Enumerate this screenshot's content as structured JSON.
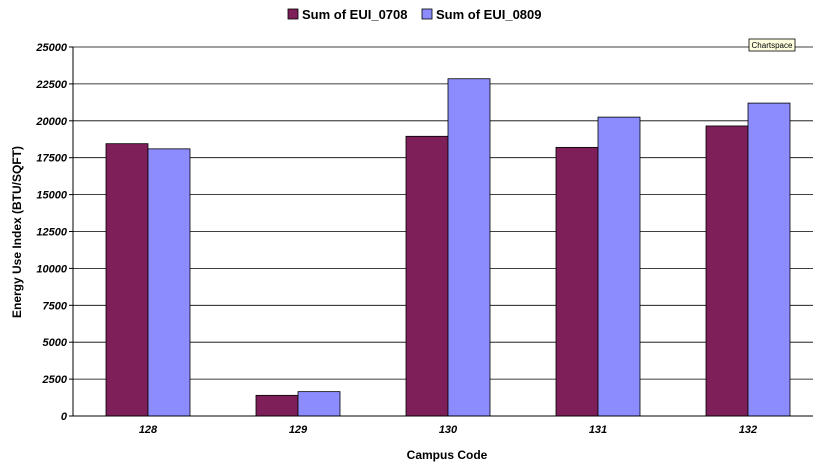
{
  "chart_data": {
    "type": "bar",
    "title": "",
    "xlabel": "Campus Code",
    "ylabel": "Energy Use Index (BTU/SQFT)",
    "categories": [
      "128",
      "129",
      "130",
      "131",
      "132"
    ],
    "series": [
      {
        "name": "Sum of EUI_0708",
        "color": "#7f1f5a",
        "values": [
          18450,
          1400,
          18950,
          18200,
          19650
        ]
      },
      {
        "name": "Sum of EUI_0809",
        "color": "#8c8cff",
        "values": [
          18100,
          1650,
          22850,
          20250,
          21200
        ]
      }
    ],
    "ylim": [
      0,
      25000
    ],
    "yticks": [
      0,
      2500,
      5000,
      7500,
      10000,
      12500,
      15000,
      17500,
      20000,
      22500,
      25000
    ],
    "grid": true,
    "legend_position": "top"
  },
  "badge": {
    "label": "Chartspace"
  }
}
